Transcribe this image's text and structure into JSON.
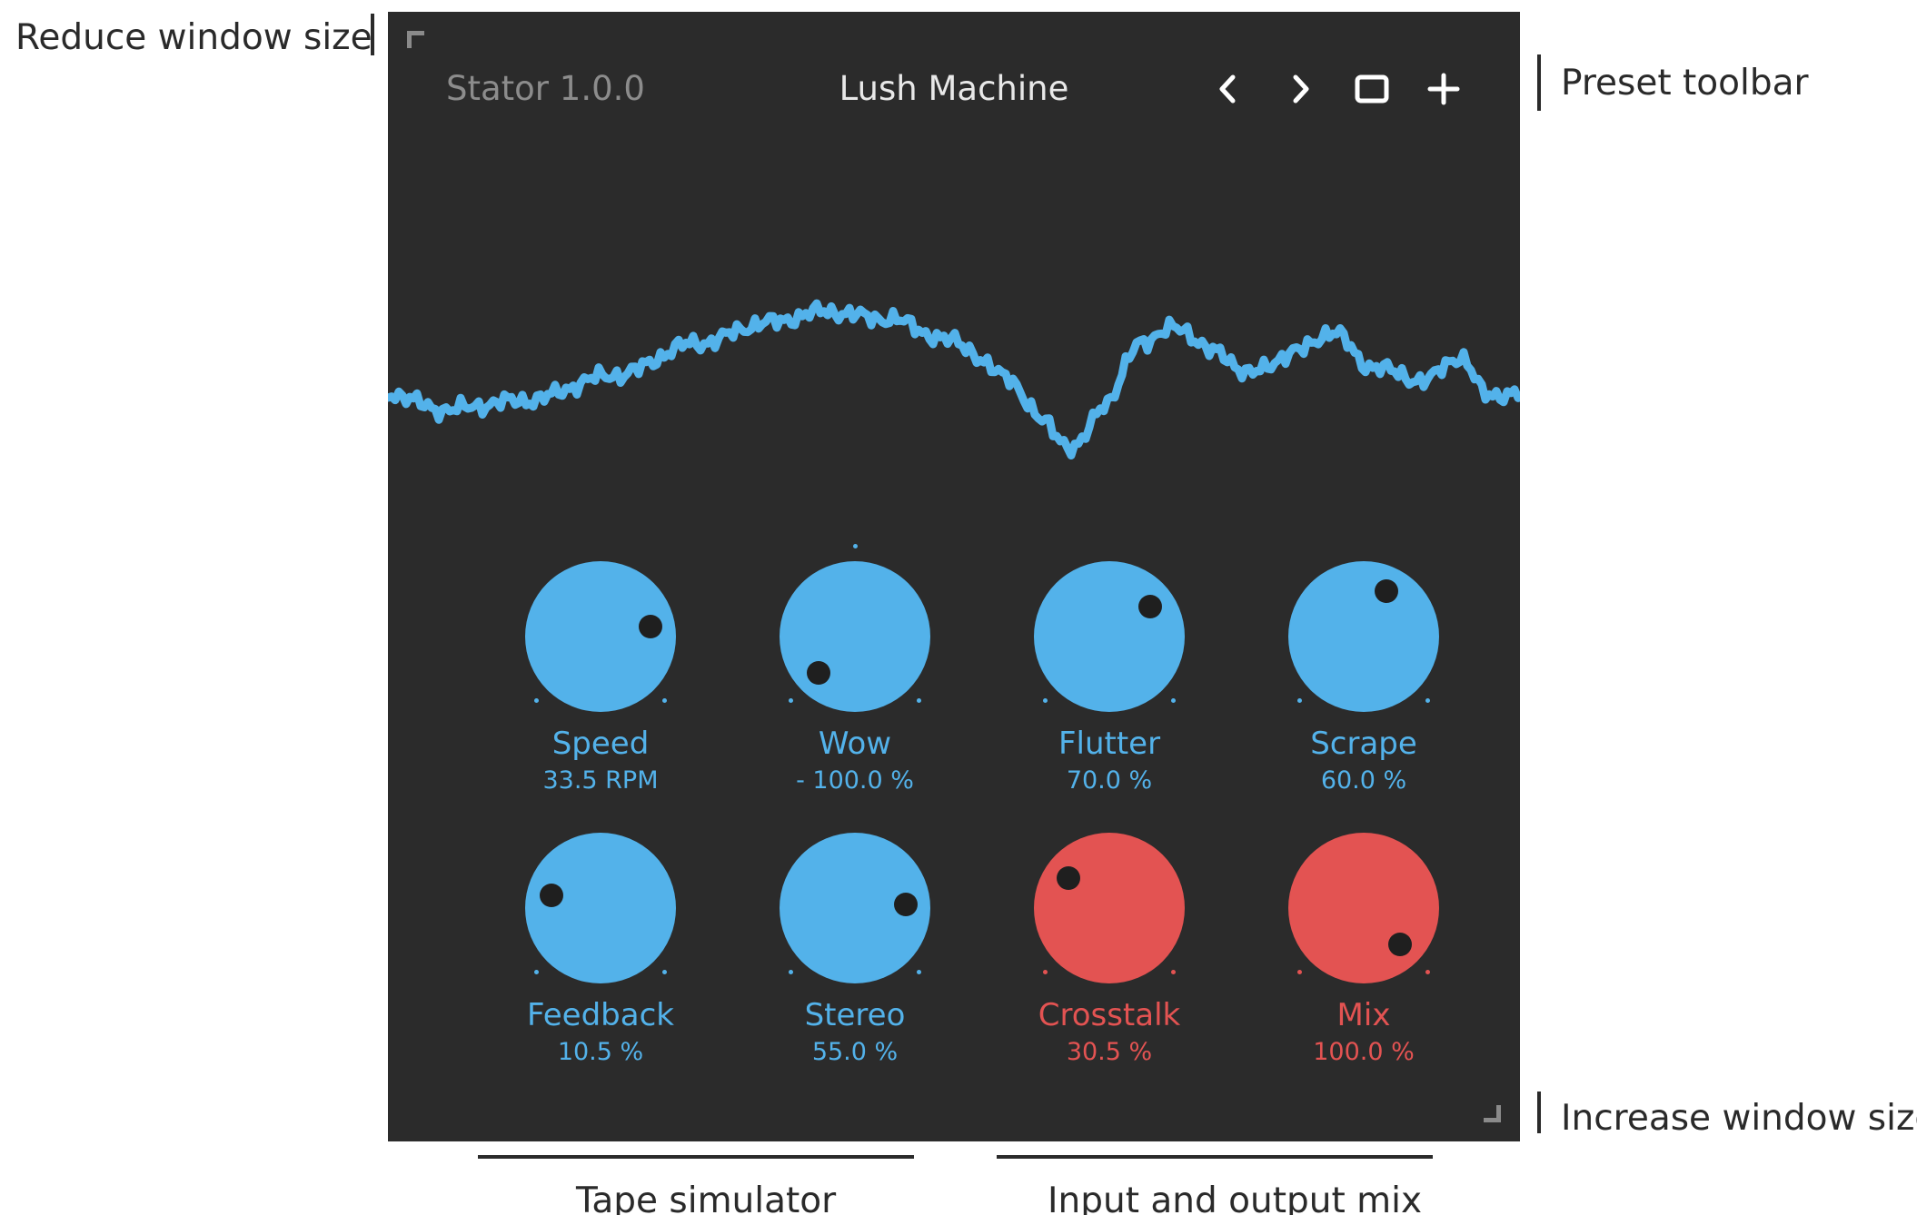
{
  "annotations": {
    "reduce_window": "Reduce window size",
    "preset_toolbar": "Preset toolbar",
    "increase_window": "Increase window size",
    "tape_simulator": "Tape simulator",
    "input_output_mix": "Input and output mix"
  },
  "header": {
    "version": "Stator 1.0.0",
    "preset_name": "Lush Machine",
    "prev_icon": "chevron-left-icon",
    "next_icon": "chevron-right-icon",
    "save_icon": "square-icon",
    "add_icon": "plus-icon"
  },
  "colors": {
    "background": "#2b2b2b",
    "accent_blue": "#53b2ea",
    "accent_red": "#e35352",
    "dim_text": "#8c8c8c"
  },
  "knobs": [
    {
      "label": "Speed",
      "value": "33.5 RPM",
      "color": "blue",
      "level": 0.79
    },
    {
      "label": "Wow",
      "value": "- 100.0 %",
      "color": "blue",
      "level": 0.0
    },
    {
      "label": "Flutter",
      "value": "70.0 %",
      "color": "blue",
      "level": 0.7
    },
    {
      "label": "Scrape",
      "value": "60.0 %",
      "color": "blue",
      "level": 0.6
    },
    {
      "label": "Feedback",
      "value": "10.5 %",
      "color": "blue",
      "level": 0.22
    },
    {
      "label": "Stereo",
      "value": "55.0 %",
      "color": "blue",
      "level": 0.82
    },
    {
      "label": "Crosstalk",
      "value": "30.5 %",
      "color": "red",
      "level": 0.3
    },
    {
      "label": "Mix",
      "value": "100.0 %",
      "color": "red",
      "level": 1.0
    }
  ]
}
